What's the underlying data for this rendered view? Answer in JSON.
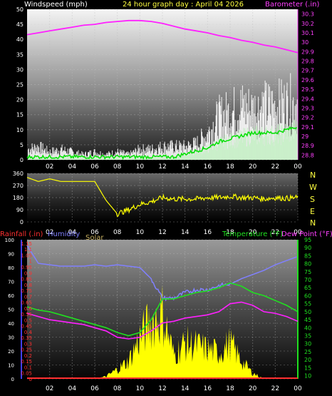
{
  "colors": {
    "wind": "#ffffff",
    "gust": "#ffffff",
    "avgwind": "#00e000",
    "barometer": "#ff20ff",
    "direction": "#ffff00",
    "rain": "#ff3030",
    "humidity": "#8080ff",
    "solar": "#ffff00",
    "temperature": "#20e020",
    "dewpoint": "#ff20ff",
    "bg": "#000000"
  },
  "header": {
    "left": "Windspeed (mph)",
    "center": "24 hour graph day : April 04 2026",
    "right": "Barometer (.in)"
  },
  "compass": {
    "N": "N",
    "W": "W",
    "S": "S",
    "E": "E",
    "N2": "N"
  },
  "bottom_header": {
    "rain": "Rainfall (.in)",
    "humidity": "Humidity",
    "solar": "Solar",
    "temp": "Temperature (°F)",
    "dew": "Dew Point (°F)"
  },
  "chart_data": [
    {
      "type": "line",
      "title": "24 hour graph day : April 04 2026",
      "xlabel": "",
      "ylabel": "Windspeed (mph)",
      "y2label": "Barometer (.in)",
      "x_ticks": [
        "02",
        "04",
        "06",
        "08",
        "10",
        "12",
        "14",
        "16",
        "18",
        "20",
        "22",
        "00"
      ],
      "y_ticks": [
        "0",
        "5",
        "10",
        "15",
        "20",
        "25",
        "30",
        "35",
        "40",
        "45",
        "50"
      ],
      "y2_ticks": [
        "28.8",
        "28.9",
        "29",
        "29.1",
        "29.2",
        "29.3",
        "29.4",
        "29.5",
        "29.6",
        "29.7",
        "29.8",
        "29.9",
        "30",
        "30.1",
        "30.2",
        "30.3"
      ],
      "ylim": [
        0,
        50
      ],
      "y2lim": [
        28.75,
        30.35
      ],
      "x": [
        0,
        1,
        2,
        3,
        4,
        5,
        6,
        7,
        8,
        9,
        10,
        11,
        12,
        13,
        14,
        15,
        16,
        17,
        18,
        19,
        20,
        21,
        22,
        23,
        24
      ],
      "series": [
        {
          "name": "Barometer",
          "axis": "right",
          "values": [
            30.08,
            30.1,
            30.12,
            30.14,
            30.16,
            30.18,
            30.19,
            30.21,
            30.22,
            30.23,
            30.23,
            30.22,
            30.2,
            30.17,
            30.14,
            30.12,
            30.1,
            30.07,
            30.05,
            30.02,
            30.0,
            29.97,
            29.95,
            29.92,
            29.89
          ]
        },
        {
          "name": "Gust",
          "axis": "left",
          "values": [
            4,
            5,
            3,
            4,
            3,
            2,
            3,
            2,
            3,
            2,
            4,
            4,
            5,
            5,
            5,
            6,
            10,
            16,
            18,
            20,
            19,
            20,
            20,
            21,
            22
          ]
        },
        {
          "name": "Average",
          "axis": "left",
          "values": [
            1,
            1,
            1,
            1,
            1,
            1,
            1,
            1,
            1,
            1,
            1,
            1,
            1,
            1,
            2,
            3,
            4,
            6,
            7,
            8,
            9,
            9,
            9,
            10,
            11
          ]
        }
      ]
    },
    {
      "type": "line",
      "ylabel": "Wind direction",
      "y_ticks": [
        "0",
        "90",
        "180",
        "270",
        "360"
      ],
      "ylim": [
        0,
        360
      ],
      "x": [
        0,
        1,
        2,
        3,
        4,
        5,
        6,
        7,
        8,
        9,
        10,
        11,
        12,
        13,
        14,
        15,
        16,
        17,
        18,
        19,
        20,
        21,
        22,
        23,
        24
      ],
      "series": [
        {
          "name": "Direction",
          "values": [
            330,
            300,
            320,
            300,
            300,
            300,
            300,
            160,
            60,
            90,
            130,
            150,
            180,
            170,
            170,
            170,
            180,
            180,
            190,
            180,
            180,
            170,
            180,
            175,
            180
          ]
        }
      ]
    },
    {
      "type": "line",
      "ylabel": "Rainfall (.in)",
      "y2label": "Temperature (°F)",
      "left_ticks": [
        "0",
        "0.05",
        "0.1",
        "0.15",
        "0.2",
        "0.25",
        "0.3",
        "0.35",
        "0.4",
        "0.45",
        "0.5",
        "0.55",
        "0.6",
        "0.65",
        "0.7",
        "0.75",
        "0.8",
        "0.85",
        "0.9",
        "0.95",
        "1",
        "1.05",
        "1.1",
        "1.15"
      ],
      "humidity_ticks": [
        "0",
        "10",
        "20",
        "30",
        "40",
        "50",
        "60",
        "70",
        "80",
        "90",
        "100"
      ],
      "right_ticks": [
        "10",
        "15",
        "20",
        "25",
        "30",
        "35",
        "40",
        "45",
        "50",
        "55",
        "60",
        "65",
        "70",
        "75",
        "80",
        "85",
        "90",
        "95"
      ],
      "ylim": [
        0,
        100
      ],
      "y2lim": [
        8,
        95
      ],
      "x": [
        0,
        1,
        2,
        3,
        4,
        5,
        6,
        7,
        8,
        9,
        10,
        11,
        12,
        13,
        14,
        15,
        16,
        17,
        18,
        19,
        20,
        21,
        22,
        23,
        24
      ],
      "series": [
        {
          "name": "Humidity",
          "axis": "humidity",
          "values": [
            96,
            83,
            82,
            81,
            81,
            81,
            82,
            81,
            82,
            81,
            80,
            72,
            58,
            58,
            62,
            64,
            64,
            67,
            68,
            72,
            75,
            78,
            82,
            85,
            88
          ]
        },
        {
          "name": "Temperature",
          "axis": "right",
          "values": [
            53,
            51,
            50,
            48,
            46,
            44,
            42,
            40,
            37,
            35,
            37,
            45,
            58,
            58,
            60,
            62,
            63,
            65,
            68,
            66,
            62,
            60,
            57,
            54,
            50
          ]
        },
        {
          "name": "Dew Point",
          "axis": "right",
          "values": [
            49,
            47,
            45,
            44,
            43,
            42,
            40,
            38,
            34,
            33,
            34,
            38,
            43,
            44,
            46,
            47,
            48,
            50,
            55,
            56,
            54,
            50,
            49,
            47,
            44
          ]
        },
        {
          "name": "Solar",
          "axis": "humidity",
          "values": [
            0,
            0,
            0,
            0,
            0,
            0,
            0,
            2,
            8,
            15,
            35,
            48,
            55,
            20,
            30,
            28,
            25,
            22,
            30,
            15,
            5,
            0,
            0,
            0,
            0
          ]
        },
        {
          "name": "Rainfall",
          "axis": "left",
          "values": [
            0,
            0,
            0,
            0,
            0,
            0,
            0,
            0,
            0,
            0,
            0,
            0,
            0,
            0,
            0,
            0,
            0,
            0,
            0,
            0,
            0,
            0,
            0,
            0,
            0
          ]
        }
      ]
    }
  ]
}
